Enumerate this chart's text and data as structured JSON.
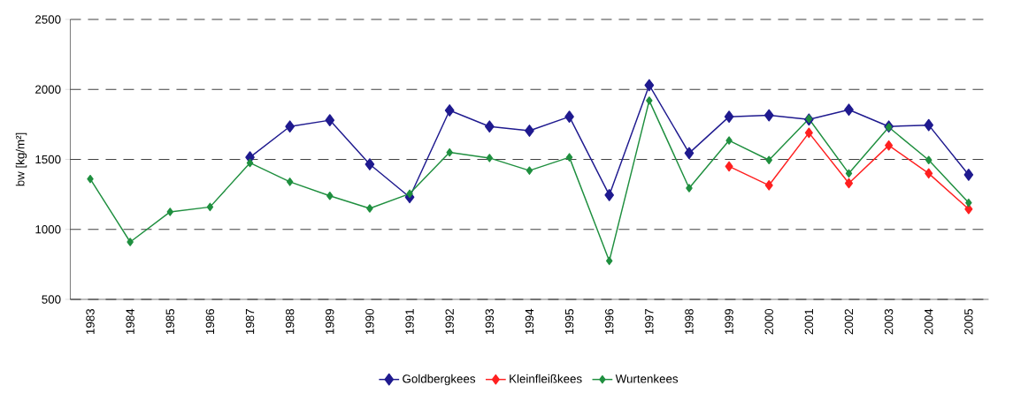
{
  "chart_data": {
    "type": "line",
    "ylabel": "bw [kg/m²]",
    "categories": [
      "1983",
      "1984",
      "1985",
      "1986",
      "1987",
      "1988",
      "1989",
      "1990",
      "1991",
      "1992",
      "1993",
      "1994",
      "1995",
      "1996",
      "1997",
      "1998",
      "1999",
      "2000",
      "2001",
      "2002",
      "2003",
      "2004",
      "2005"
    ],
    "series": [
      {
        "name": "Goldbergkees",
        "color": "#1f1a8f",
        "values": [
          null,
          null,
          null,
          null,
          1515,
          1735,
          1780,
          1465,
          1230,
          1850,
          1735,
          1705,
          1805,
          1245,
          2030,
          1545,
          1805,
          1815,
          1785,
          1855,
          1735,
          1745,
          1390
        ]
      },
      {
        "name": "Kleinfleißkees",
        "color": "#ff2020",
        "values": [
          null,
          null,
          null,
          null,
          null,
          null,
          null,
          null,
          null,
          null,
          null,
          null,
          null,
          null,
          null,
          null,
          1450,
          1315,
          1690,
          1330,
          1600,
          1400,
          1145
        ]
      },
      {
        "name": "Wurtenkees",
        "color": "#1f8f3f",
        "values": [
          1360,
          910,
          1125,
          1160,
          1475,
          1340,
          1240,
          1150,
          1255,
          1550,
          1510,
          1420,
          1515,
          775,
          1920,
          1295,
          1635,
          1495,
          1790,
          1400,
          1730,
          1495,
          1190
        ]
      }
    ],
    "ylim": [
      500,
      2500
    ],
    "yticks": [
      500,
      1000,
      1500,
      2000,
      2500
    ],
    "grid": "y",
    "legend": "bottom",
    "marker": "diamond",
    "line_style": "solid"
  }
}
